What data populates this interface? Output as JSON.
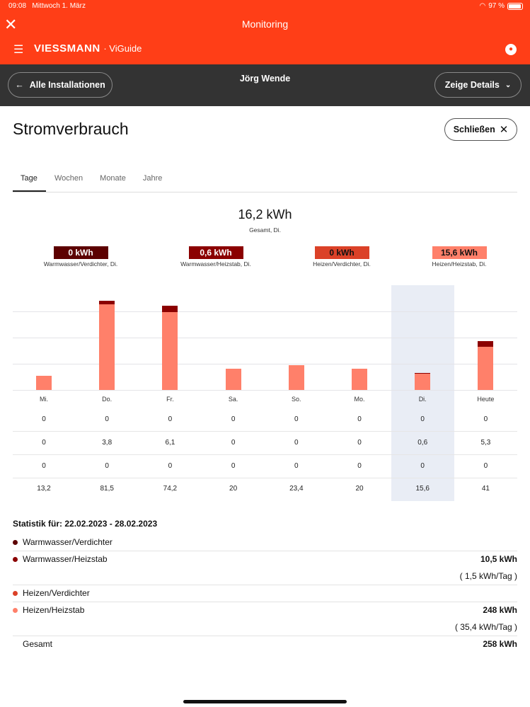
{
  "status": {
    "time": "09:08",
    "date": "Mittwoch 1. März",
    "battery": "97 %"
  },
  "app": {
    "title": "Monitoring",
    "logo": "VIESSMANN",
    "logo_suffix": "· ViGuide"
  },
  "subbar": {
    "back": "Alle Installationen",
    "name": "Jörg Wende",
    "details": "Zeige Details"
  },
  "page": {
    "title": "Stromverbrauch",
    "close": "Schließen"
  },
  "tabs": [
    "Tage",
    "Wochen",
    "Monate",
    "Jahre"
  ],
  "summary": {
    "total": "16,2 kWh",
    "total_label": "Gesamt, Di."
  },
  "legend": [
    {
      "value": "0 kWh",
      "label": "Warmwasser/Verdichter, Di.",
      "color": "#5c0000",
      "text": "#fff"
    },
    {
      "value": "0,6 kWh",
      "label": "Warmwasser/Heizstab, Di.",
      "color": "#8b0000",
      "text": "#fff"
    },
    {
      "value": "0 kWh",
      "label": "Heizen/Verdichter, Di.",
      "color": "#db4128",
      "text": "#111"
    },
    {
      "value": "15,6 kWh",
      "label": "Heizen/Heizstab, Di.",
      "color": "#ff806a",
      "text": "#111"
    }
  ],
  "chart_data": {
    "type": "bar",
    "stacked": true,
    "ylim": [
      0,
      100
    ],
    "gridlines": [
      25,
      50,
      75
    ],
    "selected": "Di.",
    "categories": [
      "Mi.",
      "Do.",
      "Fr.",
      "Sa.",
      "So.",
      "Mo.",
      "Di.",
      "Heute"
    ],
    "series": [
      {
        "name": "Warmwasser/Verdichter",
        "color": "#5c0000",
        "values": [
          0,
          0,
          0,
          0,
          0,
          0,
          0,
          0
        ],
        "labels": [
          "0",
          "0",
          "0",
          "0",
          "0",
          "0",
          "0",
          "0"
        ]
      },
      {
        "name": "Warmwasser/Heizstab",
        "color": "#8b0000",
        "values": [
          0,
          3.8,
          6.1,
          0,
          0,
          0,
          0.6,
          5.3
        ],
        "labels": [
          "0",
          "3,8",
          "6,1",
          "0",
          "0",
          "0",
          "0,6",
          "5,3"
        ]
      },
      {
        "name": "Heizen/Verdichter",
        "color": "#db4128",
        "values": [
          0,
          0,
          0,
          0,
          0,
          0,
          0,
          0
        ],
        "labels": [
          "0",
          "0",
          "0",
          "0",
          "0",
          "0",
          "0",
          "0"
        ]
      },
      {
        "name": "Heizen/Heizstab",
        "color": "#ff806a",
        "values": [
          13.2,
          81.5,
          74.2,
          20,
          23.4,
          20,
          15.6,
          41
        ],
        "labels": [
          "13,2",
          "81,5",
          "74,2",
          "20",
          "23,4",
          "20",
          "15,6",
          "41"
        ]
      }
    ]
  },
  "stats": {
    "title": "Statistik für: 22.02.2023 - 28.02.2023",
    "rows": [
      {
        "name": "Warmwasser/Verdichter",
        "color": "#5c0000",
        "value": "",
        "per_day": ""
      },
      {
        "name": "Warmwasser/Heizstab",
        "color": "#8b0000",
        "value": "10,5 kWh",
        "per_day": "( 1,5 kWh/Tag )"
      },
      {
        "name": "Heizen/Verdichter",
        "color": "#db4128",
        "value": "",
        "per_day": ""
      },
      {
        "name": "Heizen/Heizstab",
        "color": "#ff806a",
        "value": "248 kWh",
        "per_day": "( 35,4 kWh/Tag )"
      }
    ],
    "total_label": "Gesamt",
    "total_value": "258 kWh"
  }
}
